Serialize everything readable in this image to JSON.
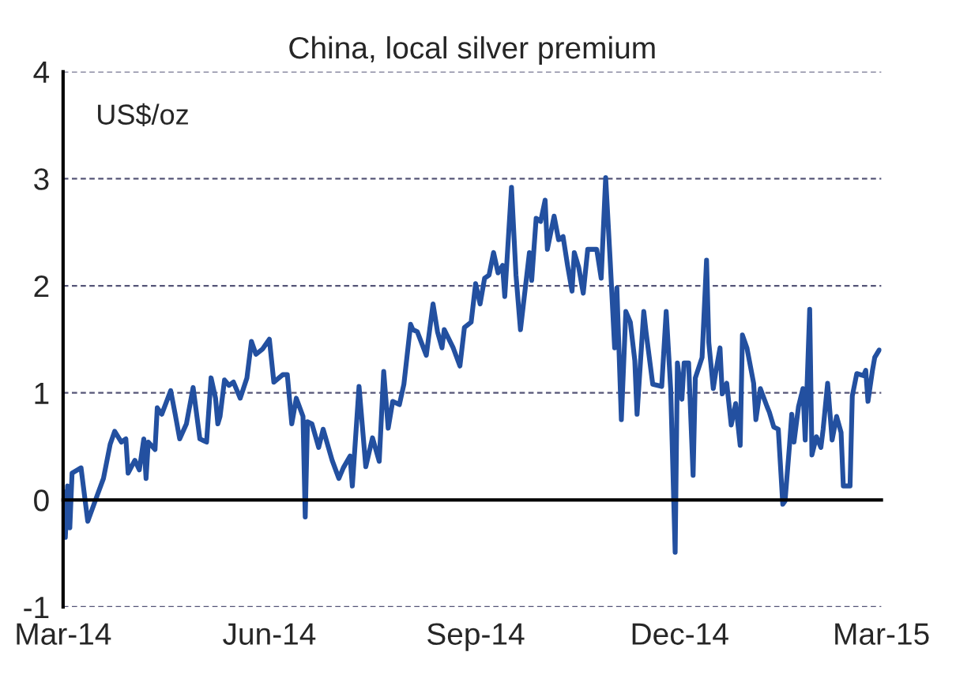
{
  "chart_data": {
    "type": "line",
    "title": "China, local silver premium",
    "ylabel": "US$/oz",
    "x": [
      "2014-03-01",
      "2014-03-02",
      "2014-03-03",
      "2014-03-04",
      "2014-03-05",
      "2014-03-09",
      "2014-03-12",
      "2014-03-16",
      "2014-03-19",
      "2014-03-22",
      "2014-03-24",
      "2014-03-27",
      "2014-03-29",
      "2014-03-30",
      "2014-04-02",
      "2014-04-04",
      "2014-04-06",
      "2014-04-07",
      "2014-04-08",
      "2014-04-11",
      "2014-04-12",
      "2014-04-14",
      "2014-04-18",
      "2014-04-20",
      "2014-04-22",
      "2014-04-25",
      "2014-04-28",
      "2014-05-01",
      "2014-05-04",
      "2014-05-06",
      "2014-05-08",
      "2014-05-09",
      "2014-05-10",
      "2014-05-12",
      "2014-05-14",
      "2014-05-16",
      "2014-05-19",
      "2014-05-22",
      "2014-05-24",
      "2014-05-26",
      "2014-05-29",
      "2014-06-01",
      "2014-06-03",
      "2014-06-07",
      "2014-06-09",
      "2014-06-11",
      "2014-06-13",
      "2014-06-16",
      "2014-06-17",
      "2014-06-18",
      "2014-06-20",
      "2014-06-23",
      "2014-06-25",
      "2014-06-29",
      "2014-07-02",
      "2014-07-04",
      "2014-07-07",
      "2014-07-08",
      "2014-07-11",
      "2014-07-14",
      "2014-07-17",
      "2014-07-20",
      "2014-07-22",
      "2014-07-24",
      "2014-07-26",
      "2014-07-29",
      "2014-07-31",
      "2014-08-03",
      "2014-08-04",
      "2014-08-06",
      "2014-08-10",
      "2014-08-13",
      "2014-08-15",
      "2014-08-17",
      "2014-08-18",
      "2014-08-22",
      "2014-08-25",
      "2014-08-27",
      "2014-08-30",
      "2014-09-01",
      "2014-09-03",
      "2014-09-05",
      "2014-09-07",
      "2014-09-09",
      "2014-09-11",
      "2014-09-13",
      "2014-09-14",
      "2014-09-17",
      "2014-09-19",
      "2014-09-21",
      "2014-09-25",
      "2014-09-26",
      "2014-09-28",
      "2014-09-30",
      "2014-10-02",
      "2014-10-03",
      "2014-10-06",
      "2014-10-08",
      "2014-10-10",
      "2014-10-12",
      "2014-10-14",
      "2014-10-15",
      "2014-10-17",
      "2014-10-19",
      "2014-10-21",
      "2014-10-25",
      "2014-10-27",
      "2014-10-29",
      "2014-10-31",
      "2014-11-02",
      "2014-11-03",
      "2014-11-05",
      "2014-11-07",
      "2014-11-09",
      "2014-11-11",
      "2014-11-12",
      "2014-11-15",
      "2014-11-16",
      "2014-11-19",
      "2014-11-23",
      "2014-11-25",
      "2014-11-27",
      "2014-11-29",
      "2014-11-30",
      "2014-12-02",
      "2014-12-03",
      "2014-12-05",
      "2014-12-07",
      "2014-12-08",
      "2014-12-11",
      "2014-12-13",
      "2014-12-14",
      "2014-12-16",
      "2014-12-17",
      "2014-12-19",
      "2014-12-20",
      "2014-12-22",
      "2014-12-24",
      "2014-12-26",
      "2014-12-28",
      "2014-12-29",
      "2014-12-31",
      "2015-01-03",
      "2015-01-04",
      "2015-01-06",
      "2015-01-09",
      "2015-01-10",
      "2015-01-12",
      "2015-01-14",
      "2015-01-16",
      "2015-01-17",
      "2015-01-19",
      "2015-01-20",
      "2015-01-21",
      "2015-01-23",
      "2015-01-25",
      "2015-01-26",
      "2015-01-28",
      "2015-01-29",
      "2015-01-31",
      "2015-02-02",
      "2015-02-03",
      "2015-02-05",
      "2015-02-07",
      "2015-02-09",
      "2015-02-11",
      "2015-02-12",
      "2015-02-15",
      "2015-02-16",
      "2015-02-18",
      "2015-02-21",
      "2015-02-22",
      "2015-02-23",
      "2015-02-25",
      "2015-02-26",
      "2015-02-28"
    ],
    "series": [
      {
        "color": "#2350a0",
        "values": [
          0.08,
          -0.35,
          0.13,
          -0.26,
          0.25,
          0.3,
          -0.2,
          0.03,
          0.2,
          0.52,
          0.64,
          0.54,
          0.57,
          0.25,
          0.37,
          0.28,
          0.57,
          0.2,
          0.54,
          0.47,
          0.86,
          0.8,
          1.02,
          0.8,
          0.57,
          0.71,
          1.05,
          0.57,
          0.54,
          1.14,
          0.95,
          0.71,
          0.78,
          1.12,
          1.07,
          1.1,
          0.95,
          1.14,
          1.48,
          1.36,
          1.41,
          1.5,
          1.1,
          1.17,
          1.17,
          0.71,
          0.95,
          0.78,
          -0.16,
          0.73,
          0.71,
          0.49,
          0.66,
          0.37,
          0.2,
          0.3,
          0.41,
          0.13,
          1.06,
          0.31,
          0.58,
          0.36,
          1.2,
          0.67,
          0.92,
          0.89,
          1.08,
          1.64,
          1.59,
          1.57,
          1.35,
          1.83,
          1.57,
          1.42,
          1.59,
          1.42,
          1.25,
          1.61,
          1.66,
          2.02,
          1.83,
          2.07,
          2.1,
          2.31,
          2.12,
          2.19,
          1.9,
          2.92,
          2.1,
          1.59,
          2.31,
          2.05,
          2.63,
          2.6,
          2.8,
          2.34,
          2.65,
          2.43,
          2.46,
          2.19,
          1.95,
          2.31,
          2.17,
          1.93,
          2.34,
          2.34,
          2.07,
          3.01,
          2.24,
          1.42,
          1.98,
          0.75,
          1.76,
          1.66,
          1.3,
          0.8,
          1.76,
          1.57,
          1.08,
          1.06,
          1.76,
          1.04,
          -0.49,
          1.28,
          0.94,
          1.28,
          1.28,
          0.23,
          1.14,
          1.33,
          2.24,
          1.47,
          1.04,
          1.18,
          1.42,
          0.99,
          1.09,
          0.7,
          0.9,
          0.51,
          1.54,
          1.42,
          1.09,
          0.75,
          1.04,
          0.87,
          0.82,
          0.68,
          0.66,
          -0.04,
          -0.01,
          0.51,
          0.8,
          0.54,
          0.87,
          1.04,
          0.56,
          1.78,
          0.42,
          0.59,
          0.49,
          0.66,
          1.09,
          0.56,
          0.78,
          0.63,
          0.13,
          0.13,
          0.97,
          1.18,
          1.16,
          1.21,
          0.92,
          1.21,
          1.33,
          1.4
        ]
      }
    ],
    "xlim": [
      "2014-03-01",
      "2015-03-01"
    ],
    "xticks": [
      {
        "value": "2014-03-01",
        "label": "Mar-14"
      },
      {
        "value": "2014-06-01",
        "label": "Jun-14"
      },
      {
        "value": "2014-09-01",
        "label": "Sep-14"
      },
      {
        "value": "2014-12-01",
        "label": "Dec-14"
      },
      {
        "value": "2015-03-01",
        "label": "Mar-15"
      }
    ],
    "ylim": [
      -1,
      4
    ],
    "yticks": [
      -1,
      0,
      1,
      2,
      3,
      4
    ],
    "grid": "y",
    "marker": "none",
    "line_style": "solid"
  }
}
